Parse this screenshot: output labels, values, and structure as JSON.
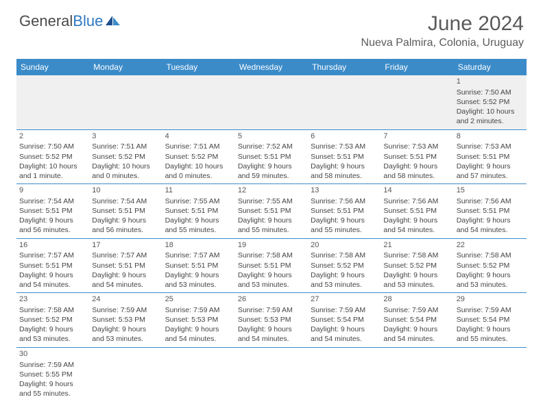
{
  "logo": {
    "part1": "General",
    "part2": "Blue"
  },
  "title": "June 2024",
  "location": "Nueva Palmira, Colonia, Uruguay",
  "colors": {
    "header_bg": "#3b8bc9",
    "header_text": "#ffffff",
    "text": "#444444",
    "logo_gray": "#4a4a4a",
    "logo_blue": "#2f79c2",
    "row_divider": "#3b8bc9",
    "first_row_bg": "#f0f0f0"
  },
  "day_headers": [
    "Sunday",
    "Monday",
    "Tuesday",
    "Wednesday",
    "Thursday",
    "Friday",
    "Saturday"
  ],
  "weeks": [
    [
      null,
      null,
      null,
      null,
      null,
      null,
      {
        "n": "1",
        "sr": "Sunrise: 7:50 AM",
        "ss": "Sunset: 5:52 PM",
        "dl1": "Daylight: 10 hours",
        "dl2": "and 2 minutes."
      }
    ],
    [
      {
        "n": "2",
        "sr": "Sunrise: 7:50 AM",
        "ss": "Sunset: 5:52 PM",
        "dl1": "Daylight: 10 hours",
        "dl2": "and 1 minute."
      },
      {
        "n": "3",
        "sr": "Sunrise: 7:51 AM",
        "ss": "Sunset: 5:52 PM",
        "dl1": "Daylight: 10 hours",
        "dl2": "and 0 minutes."
      },
      {
        "n": "4",
        "sr": "Sunrise: 7:51 AM",
        "ss": "Sunset: 5:52 PM",
        "dl1": "Daylight: 10 hours",
        "dl2": "and 0 minutes."
      },
      {
        "n": "5",
        "sr": "Sunrise: 7:52 AM",
        "ss": "Sunset: 5:51 PM",
        "dl1": "Daylight: 9 hours",
        "dl2": "and 59 minutes."
      },
      {
        "n": "6",
        "sr": "Sunrise: 7:53 AM",
        "ss": "Sunset: 5:51 PM",
        "dl1": "Daylight: 9 hours",
        "dl2": "and 58 minutes."
      },
      {
        "n": "7",
        "sr": "Sunrise: 7:53 AM",
        "ss": "Sunset: 5:51 PM",
        "dl1": "Daylight: 9 hours",
        "dl2": "and 58 minutes."
      },
      {
        "n": "8",
        "sr": "Sunrise: 7:53 AM",
        "ss": "Sunset: 5:51 PM",
        "dl1": "Daylight: 9 hours",
        "dl2": "and 57 minutes."
      }
    ],
    [
      {
        "n": "9",
        "sr": "Sunrise: 7:54 AM",
        "ss": "Sunset: 5:51 PM",
        "dl1": "Daylight: 9 hours",
        "dl2": "and 56 minutes."
      },
      {
        "n": "10",
        "sr": "Sunrise: 7:54 AM",
        "ss": "Sunset: 5:51 PM",
        "dl1": "Daylight: 9 hours",
        "dl2": "and 56 minutes."
      },
      {
        "n": "11",
        "sr": "Sunrise: 7:55 AM",
        "ss": "Sunset: 5:51 PM",
        "dl1": "Daylight: 9 hours",
        "dl2": "and 55 minutes."
      },
      {
        "n": "12",
        "sr": "Sunrise: 7:55 AM",
        "ss": "Sunset: 5:51 PM",
        "dl1": "Daylight: 9 hours",
        "dl2": "and 55 minutes."
      },
      {
        "n": "13",
        "sr": "Sunrise: 7:56 AM",
        "ss": "Sunset: 5:51 PM",
        "dl1": "Daylight: 9 hours",
        "dl2": "and 55 minutes."
      },
      {
        "n": "14",
        "sr": "Sunrise: 7:56 AM",
        "ss": "Sunset: 5:51 PM",
        "dl1": "Daylight: 9 hours",
        "dl2": "and 54 minutes."
      },
      {
        "n": "15",
        "sr": "Sunrise: 7:56 AM",
        "ss": "Sunset: 5:51 PM",
        "dl1": "Daylight: 9 hours",
        "dl2": "and 54 minutes."
      }
    ],
    [
      {
        "n": "16",
        "sr": "Sunrise: 7:57 AM",
        "ss": "Sunset: 5:51 PM",
        "dl1": "Daylight: 9 hours",
        "dl2": "and 54 minutes."
      },
      {
        "n": "17",
        "sr": "Sunrise: 7:57 AM",
        "ss": "Sunset: 5:51 PM",
        "dl1": "Daylight: 9 hours",
        "dl2": "and 54 minutes."
      },
      {
        "n": "18",
        "sr": "Sunrise: 7:57 AM",
        "ss": "Sunset: 5:51 PM",
        "dl1": "Daylight: 9 hours",
        "dl2": "and 53 minutes."
      },
      {
        "n": "19",
        "sr": "Sunrise: 7:58 AM",
        "ss": "Sunset: 5:51 PM",
        "dl1": "Daylight: 9 hours",
        "dl2": "and 53 minutes."
      },
      {
        "n": "20",
        "sr": "Sunrise: 7:58 AM",
        "ss": "Sunset: 5:52 PM",
        "dl1": "Daylight: 9 hours",
        "dl2": "and 53 minutes."
      },
      {
        "n": "21",
        "sr": "Sunrise: 7:58 AM",
        "ss": "Sunset: 5:52 PM",
        "dl1": "Daylight: 9 hours",
        "dl2": "and 53 minutes."
      },
      {
        "n": "22",
        "sr": "Sunrise: 7:58 AM",
        "ss": "Sunset: 5:52 PM",
        "dl1": "Daylight: 9 hours",
        "dl2": "and 53 minutes."
      }
    ],
    [
      {
        "n": "23",
        "sr": "Sunrise: 7:58 AM",
        "ss": "Sunset: 5:52 PM",
        "dl1": "Daylight: 9 hours",
        "dl2": "and 53 minutes."
      },
      {
        "n": "24",
        "sr": "Sunrise: 7:59 AM",
        "ss": "Sunset: 5:53 PM",
        "dl1": "Daylight: 9 hours",
        "dl2": "and 53 minutes."
      },
      {
        "n": "25",
        "sr": "Sunrise: 7:59 AM",
        "ss": "Sunset: 5:53 PM",
        "dl1": "Daylight: 9 hours",
        "dl2": "and 54 minutes."
      },
      {
        "n": "26",
        "sr": "Sunrise: 7:59 AM",
        "ss": "Sunset: 5:53 PM",
        "dl1": "Daylight: 9 hours",
        "dl2": "and 54 minutes."
      },
      {
        "n": "27",
        "sr": "Sunrise: 7:59 AM",
        "ss": "Sunset: 5:54 PM",
        "dl1": "Daylight: 9 hours",
        "dl2": "and 54 minutes."
      },
      {
        "n": "28",
        "sr": "Sunrise: 7:59 AM",
        "ss": "Sunset: 5:54 PM",
        "dl1": "Daylight: 9 hours",
        "dl2": "and 54 minutes."
      },
      {
        "n": "29",
        "sr": "Sunrise: 7:59 AM",
        "ss": "Sunset: 5:54 PM",
        "dl1": "Daylight: 9 hours",
        "dl2": "and 55 minutes."
      }
    ],
    [
      {
        "n": "30",
        "sr": "Sunrise: 7:59 AM",
        "ss": "Sunset: 5:55 PM",
        "dl1": "Daylight: 9 hours",
        "dl2": "and 55 minutes."
      },
      null,
      null,
      null,
      null,
      null,
      null
    ]
  ]
}
